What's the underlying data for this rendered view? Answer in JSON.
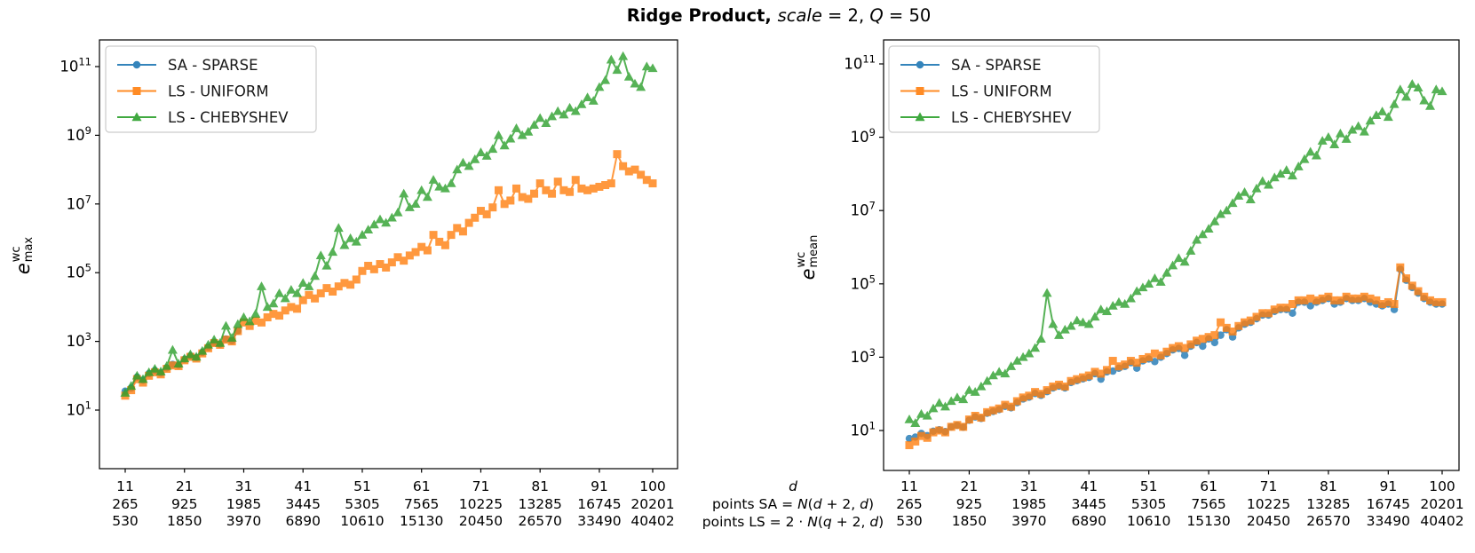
{
  "figure": {
    "title_segments": [
      {
        "t": "Ridge Product, ",
        "b": 1
      },
      {
        "t": "scale",
        "i": 1
      },
      {
        "t": " = 2, "
      },
      {
        "t": "Q",
        "i": 1
      },
      {
        "t": " = 50"
      }
    ],
    "xaxis_note_lines": [
      [
        {
          "t": "d",
          "i": 1
        }
      ],
      [
        {
          "t": "points SA = "
        },
        {
          "t": "N",
          "i": 1
        },
        {
          "t": "("
        },
        {
          "t": "d",
          "i": 1
        },
        {
          "t": " + 2, "
        },
        {
          "t": "d",
          "i": 1
        },
        {
          "t": ")"
        }
      ],
      [
        {
          "t": "points LS = 2 · "
        },
        {
          "t": "N",
          "i": 1
        },
        {
          "t": "("
        },
        {
          "t": "q",
          "i": 1
        },
        {
          "t": " + 2, "
        },
        {
          "t": "d",
          "i": 1
        },
        {
          "t": ")"
        }
      ]
    ],
    "colors": {
      "blue": "#1f77b4",
      "orange": "#ff7f0e",
      "green": "#2ca02c",
      "axis": "#000000",
      "legend_border": "#cccccc"
    }
  },
  "chart_data": [
    {
      "type": "line",
      "panel": "left",
      "yscale": "log",
      "ylabel": {
        "base": "e",
        "sup": "wc",
        "sub": "max"
      },
      "yticks_exponents": [
        11,
        9,
        7,
        5,
        3,
        1
      ],
      "xtick_rows": [
        [
          "11",
          "21",
          "31",
          "41",
          "51",
          "61",
          "71",
          "81",
          "91",
          "100"
        ],
        [
          "265",
          "925",
          "1985",
          "3445",
          "5305",
          "7565",
          "10225",
          "13285",
          "16745",
          "20201"
        ],
        [
          "530",
          "1850",
          "3970",
          "6890",
          "10610",
          "15130",
          "20450",
          "26570",
          "33490",
          "40402"
        ]
      ],
      "xtick_d": [
        11,
        21,
        31,
        41,
        51,
        61,
        71,
        81,
        91,
        100
      ],
      "legend_position": "upper left",
      "series": [
        {
          "name": "SA - SPARSE",
          "color": "blue",
          "marker": "circle",
          "d_start": 11,
          "log10_values": [
            1.55,
            1.64,
            1.96,
            1.87,
            2.06,
            2.15,
            2.08,
            2.23,
            2.33,
            2.31,
            2.48,
            2.58,
            2.53,
            2.68,
            2.83,
            2.97,
            2.92,
            3.07,
            3.02,
            3.31
          ]
        },
        {
          "name": "LS - UNIFORM",
          "color": "orange",
          "marker": "square",
          "d_start": 11,
          "log10_values": [
            1.42,
            1.58,
            1.9,
            1.8,
            2.0,
            2.1,
            2.04,
            2.2,
            2.3,
            2.28,
            2.45,
            2.55,
            2.5,
            2.65,
            2.8,
            2.95,
            2.9,
            3.05,
            3.0,
            3.3,
            3.55,
            3.45,
            3.6,
            3.55,
            3.7,
            3.8,
            3.75,
            3.9,
            4.0,
            3.95,
            4.2,
            4.35,
            4.25,
            4.4,
            4.55,
            4.45,
            4.6,
            4.7,
            4.65,
            4.8,
            5.05,
            5.2,
            5.1,
            5.25,
            5.15,
            5.3,
            5.45,
            5.35,
            5.5,
            5.6,
            5.75,
            5.65,
            6.1,
            5.9,
            5.8,
            6.1,
            6.3,
            6.2,
            6.45,
            6.6,
            6.8,
            6.7,
            6.9,
            7.4,
            7.0,
            7.1,
            7.45,
            7.2,
            7.15,
            7.3,
            7.6,
            7.4,
            7.3,
            7.65,
            7.4,
            7.35,
            7.7,
            7.45,
            7.4,
            7.45,
            7.5,
            7.55,
            7.6,
            8.45,
            8.1,
            7.95,
            8.0,
            7.85,
            7.7,
            7.6
          ]
        },
        {
          "name": "LS - CHEBYSHEV",
          "color": "green",
          "marker": "triangle",
          "d_start": 11,
          "log10_values": [
            1.5,
            1.7,
            2.0,
            1.9,
            2.1,
            2.2,
            2.12,
            2.28,
            2.75,
            2.35,
            2.5,
            2.62,
            2.55,
            2.72,
            2.9,
            3.05,
            2.95,
            3.45,
            3.1,
            3.5,
            3.7,
            3.58,
            3.8,
            4.6,
            4.0,
            4.1,
            4.4,
            4.25,
            4.5,
            4.4,
            4.7,
            4.6,
            4.9,
            5.5,
            5.2,
            5.6,
            6.3,
            5.8,
            6.0,
            5.9,
            6.1,
            6.25,
            6.4,
            6.55,
            6.45,
            6.6,
            6.75,
            7.3,
            6.9,
            7.0,
            7.4,
            7.2,
            7.7,
            7.5,
            7.45,
            7.6,
            8.0,
            8.2,
            8.1,
            8.3,
            8.5,
            8.4,
            8.6,
            9.0,
            8.7,
            8.9,
            9.2,
            9.0,
            9.1,
            9.3,
            9.5,
            9.35,
            9.55,
            9.7,
            9.6,
            9.8,
            9.7,
            9.9,
            10.1,
            10.0,
            10.4,
            10.6,
            11.2,
            10.9,
            11.3,
            10.7,
            10.5,
            10.4,
            11.0,
            10.95
          ]
        }
      ]
    },
    {
      "type": "line",
      "panel": "right",
      "yscale": "log",
      "ylabel": {
        "base": "e",
        "sup": "wc",
        "sub": "mean"
      },
      "yticks_exponents": [
        11,
        9,
        7,
        5,
        3,
        1
      ],
      "xtick_rows": [
        [
          "11",
          "21",
          "31",
          "41",
          "51",
          "61",
          "71",
          "81",
          "91",
          "100"
        ],
        [
          "265",
          "925",
          "1985",
          "3445",
          "5305",
          "7565",
          "10225",
          "13285",
          "16745",
          "20201"
        ],
        [
          "530",
          "1850",
          "3970",
          "6890",
          "10610",
          "15130",
          "20450",
          "26570",
          "33490",
          "40402"
        ]
      ],
      "xtick_d": [
        11,
        21,
        31,
        41,
        51,
        61,
        71,
        81,
        91,
        100
      ],
      "legend_position": "upper left",
      "series": [
        {
          "name": "SA - SPARSE",
          "color": "blue",
          "marker": "circle",
          "d_start": 11,
          "log10_values": [
            0.78,
            0.82,
            0.92,
            0.86,
            0.98,
            1.02,
            0.97,
            1.1,
            1.14,
            1.09,
            1.28,
            1.37,
            1.33,
            1.47,
            1.52,
            1.57,
            1.66,
            1.62,
            1.76,
            1.86,
            1.91,
            2.01,
            1.96,
            2.06,
            2.16,
            2.21,
            2.16,
            2.31,
            2.36,
            2.41,
            2.45,
            2.55,
            2.4,
            2.6,
            2.62,
            2.7,
            2.75,
            2.85,
            2.7,
            2.9,
            2.95,
            2.88,
            3.0,
            3.1,
            3.2,
            3.24,
            3.05,
            3.3,
            3.4,
            3.3,
            3.5,
            3.4,
            3.6,
            3.75,
            3.55,
            3.8,
            3.9,
            3.95,
            4.05,
            4.15,
            4.15,
            4.25,
            4.3,
            4.3,
            4.2,
            4.5,
            4.5,
            4.4,
            4.5,
            4.55,
            4.6,
            4.45,
            4.5,
            4.6,
            4.55,
            4.55,
            4.6,
            4.5,
            4.45,
            4.4,
            4.45,
            4.3,
            5.4,
            5.1,
            4.9,
            4.75,
            4.6,
            4.5,
            4.45,
            4.45
          ]
        },
        {
          "name": "LS - UNIFORM",
          "color": "orange",
          "marker": "square",
          "d_start": 11,
          "log10_values": [
            0.6,
            0.7,
            0.85,
            0.8,
            0.95,
            1.0,
            0.95,
            1.1,
            1.15,
            1.1,
            1.3,
            1.4,
            1.35,
            1.5,
            1.55,
            1.6,
            1.7,
            1.65,
            1.8,
            1.9,
            1.95,
            2.05,
            2.0,
            2.1,
            2.2,
            2.25,
            2.2,
            2.35,
            2.4,
            2.45,
            2.5,
            2.6,
            2.55,
            2.65,
            2.9,
            2.75,
            2.8,
            2.9,
            2.85,
            2.95,
            3.0,
            3.1,
            3.05,
            3.15,
            3.25,
            3.3,
            3.25,
            3.35,
            3.45,
            3.5,
            3.55,
            3.6,
            3.95,
            3.8,
            3.7,
            3.85,
            3.95,
            4.0,
            4.1,
            4.2,
            4.2,
            4.3,
            4.35,
            4.35,
            4.45,
            4.55,
            4.55,
            4.6,
            4.55,
            4.6,
            4.65,
            4.55,
            4.55,
            4.65,
            4.6,
            4.6,
            4.65,
            4.6,
            4.55,
            4.45,
            4.5,
            4.45,
            5.45,
            5.15,
            4.95,
            4.8,
            4.65,
            4.55,
            4.5,
            4.5
          ]
        },
        {
          "name": "LS - CHEBYSHEV",
          "color": "green",
          "marker": "triangle",
          "d_start": 11,
          "log10_values": [
            1.3,
            1.2,
            1.45,
            1.4,
            1.6,
            1.75,
            1.65,
            1.8,
            1.9,
            1.85,
            2.1,
            2.05,
            2.2,
            2.35,
            2.5,
            2.6,
            2.55,
            2.75,
            2.9,
            3.0,
            3.1,
            3.25,
            3.5,
            4.75,
            3.9,
            3.6,
            3.75,
            3.85,
            4.0,
            3.95,
            3.9,
            4.1,
            4.3,
            4.25,
            4.4,
            4.5,
            4.45,
            4.6,
            4.8,
            4.9,
            5.0,
            5.15,
            5.05,
            5.3,
            5.5,
            5.7,
            5.6,
            5.9,
            6.2,
            6.35,
            6.5,
            6.7,
            6.9,
            7.0,
            7.2,
            7.4,
            7.5,
            7.3,
            7.6,
            7.8,
            7.7,
            7.9,
            8.0,
            8.1,
            7.95,
            8.2,
            8.4,
            8.6,
            8.5,
            8.9,
            9.0,
            8.8,
            9.1,
            8.95,
            9.2,
            9.3,
            9.15,
            9.45,
            9.6,
            9.7,
            9.55,
            9.9,
            10.3,
            10.1,
            10.45,
            10.35,
            10.0,
            9.85,
            10.3,
            10.25
          ]
        }
      ]
    }
  ]
}
